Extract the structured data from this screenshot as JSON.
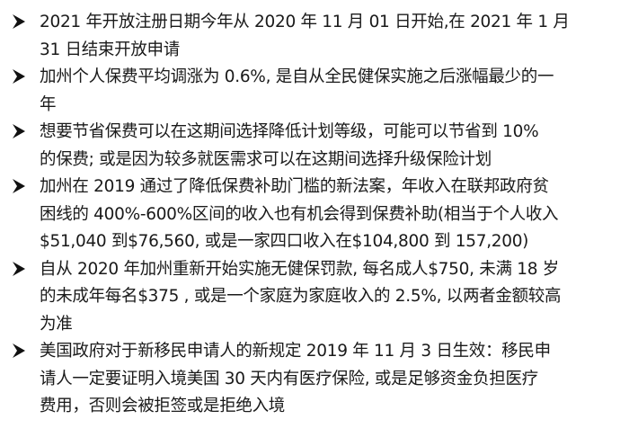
{
  "items": [
    {
      "lines": [
        "2021 年开放注册日期今年从 2020 年 11 月 01 日开始,在 2021 年 1 月",
        "31 日结束开放申请"
      ]
    },
    {
      "lines": [
        "加州个人保费平均调涨为 0.6%, 是自从全民健保实施之后涨幅最少的一",
        "年"
      ]
    },
    {
      "lines": [
        "想要节省保费可以在这期间选择降低计划等级，可能可以节省到 10%",
        "的保费; 或是因为较多就医需求可以在这期间选择升级保险计划"
      ]
    },
    {
      "lines": [
        "加州在 2019 通过了降低保费补助门槛的新法案，年收入在联邦政府贫",
        "困线的 400%-600%区间的收入也有机会得到保费补助(相当于个人收入",
        "$51,040 到$76,560, 或是一家四口收入在$104,800 到 157,200)"
      ]
    },
    {
      "lines": [
        "自从 2020 年加州重新开始实施无健保罚款, 每名成人$750, 未满 18 岁",
        "的未成年每名$375 , 或是一个家庭为家庭收入的 2.5%, 以两者金额较高",
        "为准"
      ]
    },
    {
      "lines": [
        "美国政府对于新移民申请人的新规定 2019 年 11 月 3 日生效：移民申",
        "请人一定要证明入境美国 30 天内有医疗保险, 或是足够资金负担医疗",
        "费用，否则会被拒签或是拒绝入境"
      ]
    }
  ]
}
